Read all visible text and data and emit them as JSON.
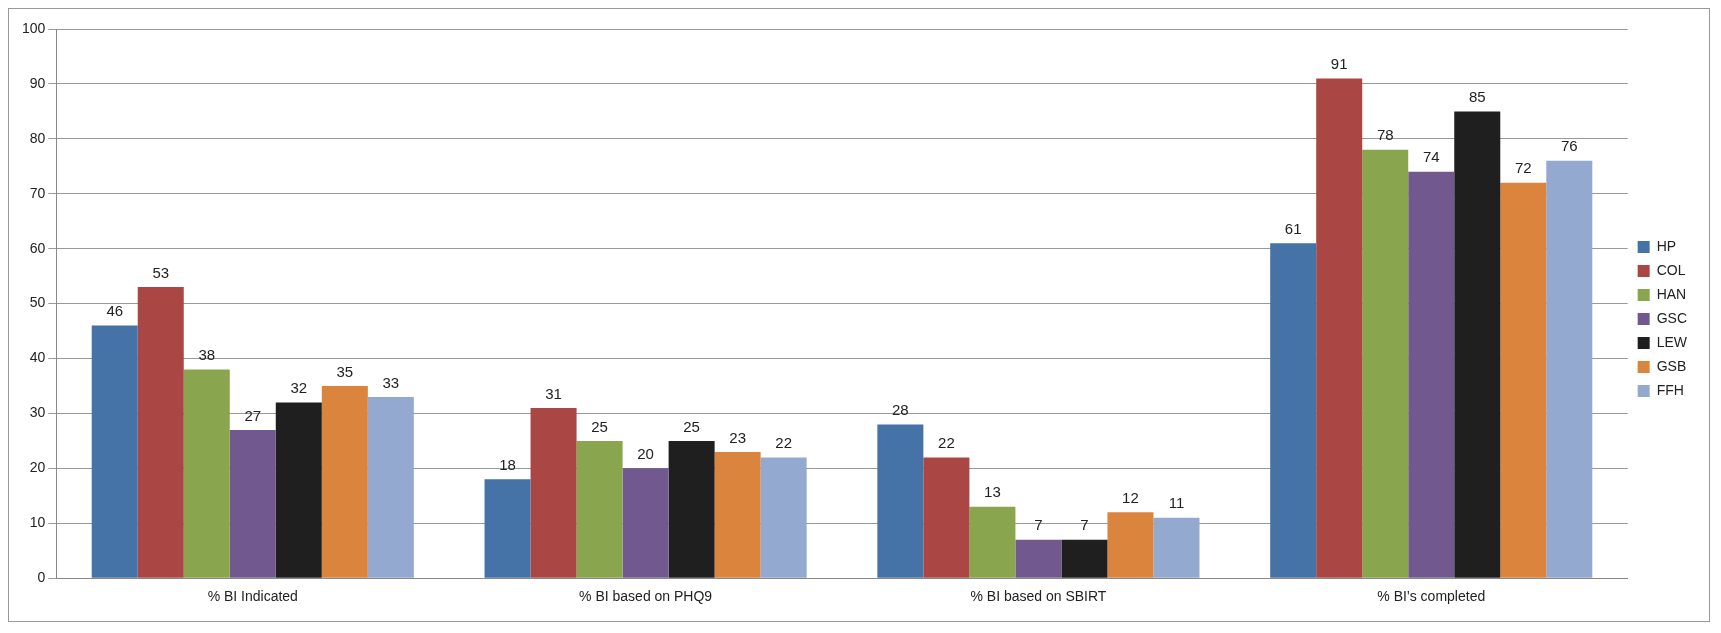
{
  "chart_data": {
    "type": "bar",
    "categories": [
      "% BI Indicated",
      "% BI based on PHQ9",
      "% BI based on SBIRT",
      "% BI’s completed"
    ],
    "series": [
      {
        "name": "HP",
        "color": "#4572a7",
        "values": [
          46,
          18,
          28,
          61
        ]
      },
      {
        "name": "COL",
        "color": "#aa4643",
        "values": [
          53,
          31,
          22,
          91
        ]
      },
      {
        "name": "HAN",
        "color": "#89a54e",
        "values": [
          38,
          25,
          13,
          78
        ]
      },
      {
        "name": "GSC",
        "color": "#71588f",
        "values": [
          27,
          20,
          7,
          74
        ]
      },
      {
        "name": "LEW",
        "color": "#1f1f1f",
        "values": [
          32,
          25,
          7,
          85
        ]
      },
      {
        "name": "GSB",
        "color": "#db843d",
        "values": [
          35,
          23,
          12,
          72
        ]
      },
      {
        "name": "FFH",
        "color": "#93a9cf",
        "values": [
          33,
          22,
          11,
          76
        ]
      }
    ],
    "ylim": [
      0,
      100
    ],
    "yticks": [
      0,
      10,
      20,
      30,
      40,
      50,
      60,
      70,
      80,
      90,
      100
    ],
    "grid": "y",
    "legend": "right",
    "data_labels": true
  }
}
